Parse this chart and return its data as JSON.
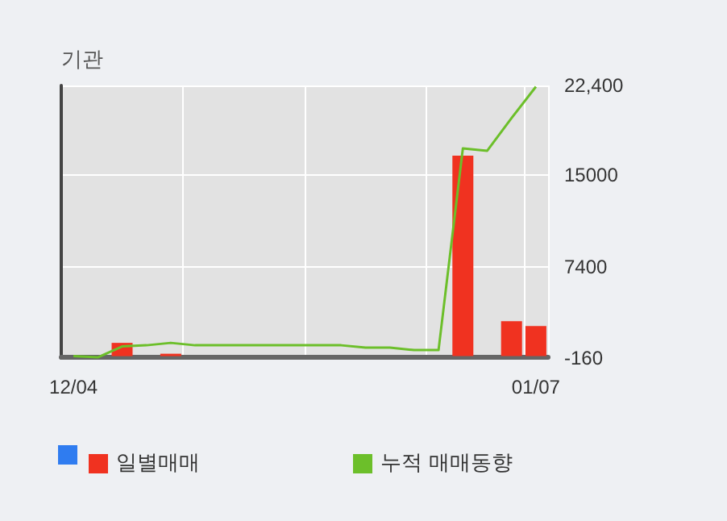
{
  "chart_data": {
    "type": "bar",
    "title": "기관",
    "categories": [
      "12/04",
      null,
      null,
      null,
      null,
      null,
      null,
      null,
      null,
      null,
      null,
      null,
      null,
      null,
      null,
      null,
      null,
      null,
      null,
      "01/07"
    ],
    "series": [
      {
        "name": "일별매매",
        "color": "#f03220",
        "values": [
          null,
          null,
          1100,
          null,
          200,
          null,
          null,
          null,
          null,
          null,
          null,
          null,
          null,
          null,
          null,
          null,
          16600,
          null,
          2900,
          2500
        ]
      },
      {
        "name": "누적 매매동향",
        "type": "line",
        "color": "#6cbf2a",
        "values": [
          0,
          -100,
          800,
          900,
          1100,
          900,
          900,
          900,
          900,
          900,
          900,
          900,
          700,
          700,
          500,
          500,
          17200,
          17000,
          19700,
          22300
        ]
      }
    ],
    "ylim": [
      -160,
      22400
    ],
    "yticks": [
      -160,
      7400,
      15000,
      {
        "value": 22400,
        "label": "22,400"
      }
    ],
    "grid": true,
    "legend": "bottom left",
    "marker": "none"
  }
}
